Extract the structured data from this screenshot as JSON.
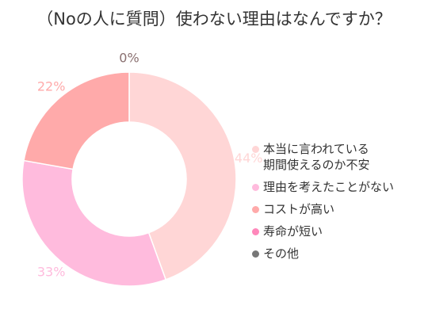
{
  "chart_data": {
    "type": "pie",
    "title": "（Noの人に質問）使わない理由はなんですか？",
    "categories": [
      "本当に言われている\n期間使えるのか不安",
      "理由を考えたことがない",
      "コストが高い",
      "寿命が短い",
      "その他"
    ],
    "values": [
      44,
      33,
      22,
      0,
      0
    ],
    "data_labels": [
      "44%",
      "33%",
      "22%",
      "0%",
      ""
    ],
    "colors": [
      "#ffd6d6",
      "#ffbbdd",
      "#ffaaaa",
      "#ff88bb",
      "#777777"
    ],
    "donut": true,
    "legend_position": "right"
  }
}
